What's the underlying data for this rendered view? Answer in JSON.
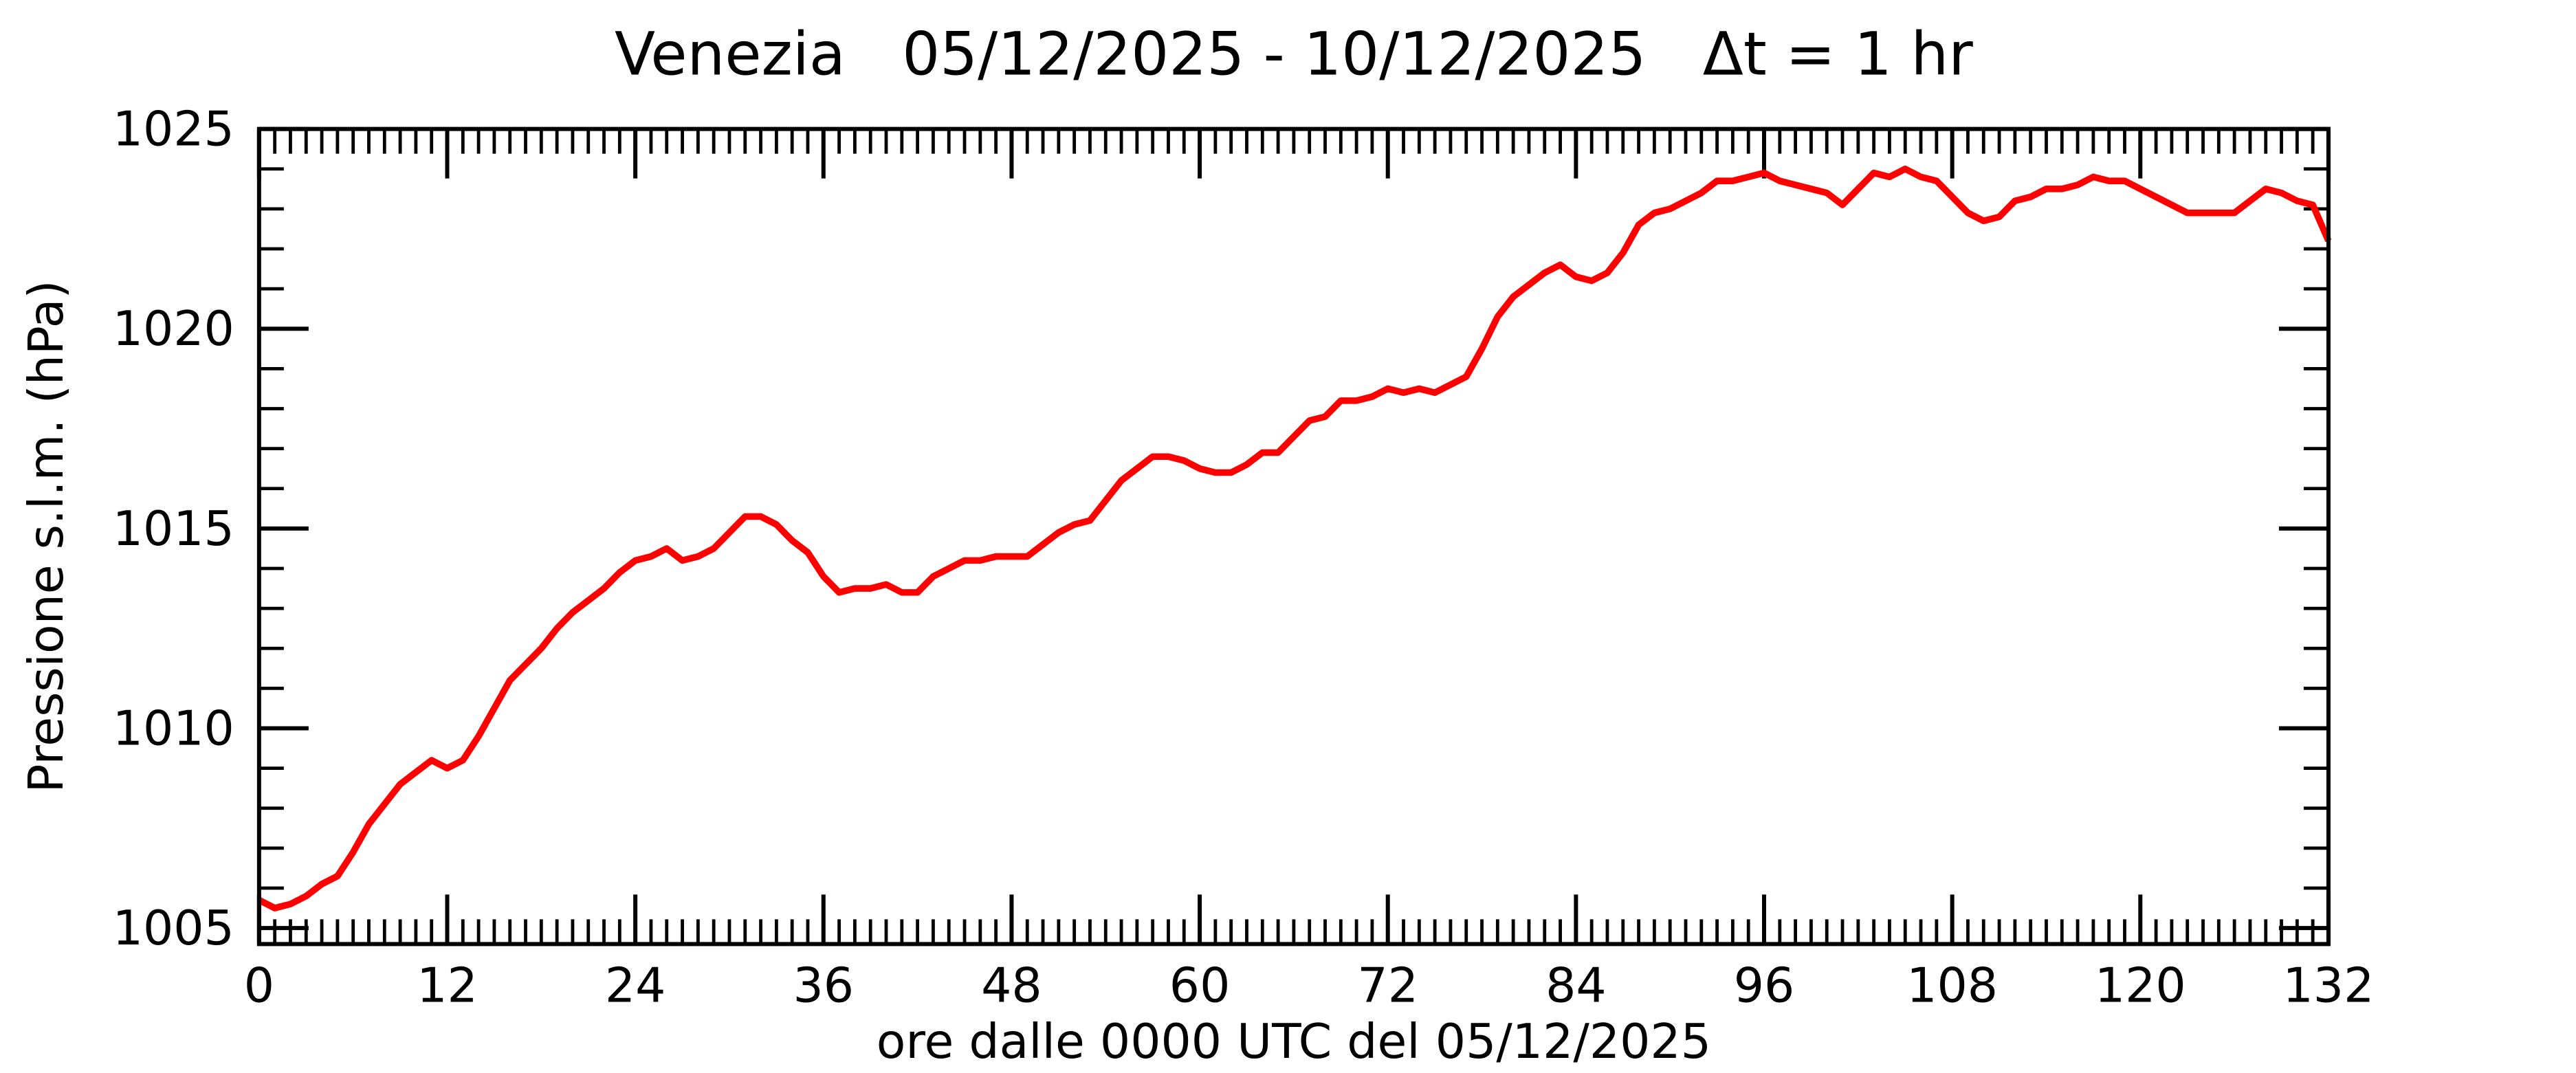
{
  "chart_data": {
    "type": "line",
    "title": "Venezia   05/12/2025 - 10/12/2025   Δt = 1 hr",
    "x_label": "ore dalle 0000 UTC del 05/12/2025",
    "y_label": "Pressione s.l.m. (hPa)",
    "x": [
      0,
      1,
      2,
      3,
      4,
      5,
      6,
      7,
      8,
      9,
      10,
      11,
      12,
      13,
      14,
      15,
      16,
      17,
      18,
      19,
      20,
      21,
      22,
      23,
      24,
      25,
      26,
      27,
      28,
      29,
      30,
      31,
      32,
      33,
      34,
      35,
      36,
      37,
      38,
      39,
      40,
      41,
      42,
      43,
      44,
      45,
      46,
      47,
      48,
      49,
      50,
      51,
      52,
      53,
      54,
      55,
      56,
      57,
      58,
      59,
      60,
      61,
      62,
      63,
      64,
      65,
      66,
      67,
      68,
      69,
      70,
      71,
      72,
      73,
      74,
      75,
      76,
      77,
      78,
      79,
      80,
      81,
      82,
      83,
      84,
      85,
      86,
      87,
      88,
      89,
      90,
      91,
      92,
      93,
      94,
      95,
      96,
      97,
      98,
      99,
      100,
      101,
      102,
      103,
      104,
      105,
      106,
      107,
      108,
      109,
      110,
      111,
      112,
      113,
      114,
      115,
      116,
      117,
      118,
      119,
      120,
      121,
      122,
      123,
      124,
      125,
      126,
      127,
      128,
      129,
      130,
      131,
      132
    ],
    "series": [
      {
        "name": "Venezia",
        "color": "#ff0000",
        "values": [
          1005.7,
          1005.5,
          1005.6,
          1005.8,
          1006.1,
          1006.3,
          1006.9,
          1007.6,
          1008.1,
          1008.6,
          1008.9,
          1009.2,
          1009.0,
          1009.2,
          1009.8,
          1010.5,
          1011.2,
          1011.6,
          1012.0,
          1012.5,
          1012.9,
          1013.2,
          1013.5,
          1013.9,
          1014.2,
          1014.3,
          1014.5,
          1014.2,
          1014.3,
          1014.5,
          1014.9,
          1015.3,
          1015.3,
          1015.1,
          1014.7,
          1014.4,
          1013.8,
          1013.4,
          1013.5,
          1013.5,
          1013.6,
          1013.4,
          1013.4,
          1013.8,
          1014.0,
          1014.2,
          1014.2,
          1014.3,
          1014.3,
          1014.3,
          1014.6,
          1014.9,
          1015.1,
          1015.2,
          1015.7,
          1016.2,
          1016.5,
          1016.8,
          1016.8,
          1016.7,
          1016.5,
          1016.4,
          1016.4,
          1016.6,
          1016.9,
          1016.9,
          1017.3,
          1017.7,
          1017.8,
          1018.2,
          1018.2,
          1018.3,
          1018.5,
          1018.4,
          1018.5,
          1018.4,
          1018.6,
          1018.8,
          1019.5,
          1020.3,
          1020.8,
          1021.1,
          1021.4,
          1021.6,
          1021.3,
          1021.2,
          1021.4,
          1021.9,
          1022.6,
          1022.9,
          1023.0,
          1023.2,
          1023.4,
          1023.7,
          1023.7,
          1023.8,
          1023.9,
          1023.7,
          1023.6,
          1023.5,
          1023.4,
          1023.1,
          1023.5,
          1023.9,
          1023.8,
          1024.0,
          1023.8,
          1023.7,
          1023.3,
          1022.9,
          1022.7,
          1022.8,
          1023.2,
          1023.3,
          1023.5,
          1023.5,
          1023.6,
          1023.8,
          1023.7,
          1023.7,
          1023.5,
          1023.3,
          1023.1,
          1022.9,
          1022.9,
          1022.9,
          1022.9,
          1023.2,
          1023.5,
          1023.4,
          1023.2,
          1023.1,
          1022.2
        ]
      }
    ],
    "xlim": [
      0,
      132
    ],
    "xticks": [
      0,
      12,
      24,
      36,
      48,
      60,
      72,
      84,
      96,
      108,
      120,
      132
    ],
    "ylim": [
      1004.6,
      1025
    ],
    "yticks": [
      1005,
      1010,
      1015,
      1020,
      1025
    ],
    "grid": false
  }
}
